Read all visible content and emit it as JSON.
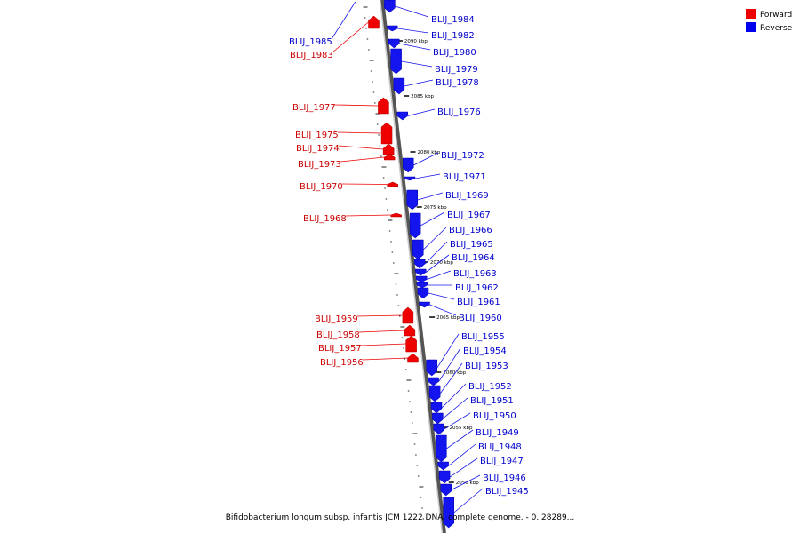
{
  "caption": "Bifidobacterium longum subsp. infantis JCM 1222 DNA, complete genome. - 0..28289...",
  "legend": [
    {
      "label": "Forward",
      "color": "#ee0000"
    },
    {
      "label": "Reverse",
      "color": "#0000ee"
    }
  ],
  "colors": {
    "forward": "#ee0000",
    "reverse": "#1414ee",
    "backbone": "#888888"
  },
  "ticks": [
    "2090 kbp",
    "2085 kbp",
    "2080 kbp",
    "2075 kbp",
    "2070 kbp",
    "2065 kbp",
    "2060 kbp",
    "2055 kbp",
    "2050 kbp"
  ],
  "genes": [
    {
      "name": "BLIJ_1984",
      "strand": "reverse"
    },
    {
      "name": "BLIJ_1985",
      "strand": "reverse"
    },
    {
      "name": "BLIJ_1983",
      "strand": "forward"
    },
    {
      "name": "BLIJ_1982",
      "strand": "reverse"
    },
    {
      "name": "BLIJ_1980",
      "strand": "reverse"
    },
    {
      "name": "BLIJ_1979",
      "strand": "reverse"
    },
    {
      "name": "BLIJ_1978",
      "strand": "reverse"
    },
    {
      "name": "BLIJ_1977",
      "strand": "forward"
    },
    {
      "name": "BLIJ_1976",
      "strand": "reverse"
    },
    {
      "name": "BLIJ_1975",
      "strand": "forward"
    },
    {
      "name": "BLIJ_1974",
      "strand": "forward"
    },
    {
      "name": "BLIJ_1973",
      "strand": "forward"
    },
    {
      "name": "BLIJ_1972",
      "strand": "reverse"
    },
    {
      "name": "BLIJ_1971",
      "strand": "reverse"
    },
    {
      "name": "BLIJ_1970",
      "strand": "forward"
    },
    {
      "name": "BLIJ_1969",
      "strand": "reverse"
    },
    {
      "name": "BLIJ_1968",
      "strand": "forward"
    },
    {
      "name": "BLIJ_1967",
      "strand": "reverse"
    },
    {
      "name": "BLIJ_1966",
      "strand": "reverse"
    },
    {
      "name": "BLIJ_1965",
      "strand": "reverse"
    },
    {
      "name": "BLIJ_1964",
      "strand": "reverse"
    },
    {
      "name": "BLIJ_1963",
      "strand": "reverse"
    },
    {
      "name": "BLIJ_1962",
      "strand": "reverse"
    },
    {
      "name": "BLIJ_1961",
      "strand": "reverse"
    },
    {
      "name": "BLIJ_1960",
      "strand": "reverse"
    },
    {
      "name": "BLIJ_1959",
      "strand": "forward"
    },
    {
      "name": "BLIJ_1958",
      "strand": "forward"
    },
    {
      "name": "BLIJ_1957",
      "strand": "forward"
    },
    {
      "name": "BLIJ_1956",
      "strand": "forward"
    },
    {
      "name": "BLIJ_1955",
      "strand": "reverse"
    },
    {
      "name": "BLIJ_1954",
      "strand": "reverse"
    },
    {
      "name": "BLIJ_1953",
      "strand": "reverse"
    },
    {
      "name": "BLIJ_1952",
      "strand": "reverse"
    },
    {
      "name": "BLIJ_1951",
      "strand": "reverse"
    },
    {
      "name": "BLIJ_1950",
      "strand": "reverse"
    },
    {
      "name": "BLIJ_1949",
      "strand": "reverse"
    },
    {
      "name": "BLIJ_1948",
      "strand": "reverse"
    },
    {
      "name": "BLIJ_1947",
      "strand": "reverse"
    },
    {
      "name": "BLIJ_1946",
      "strand": "reverse"
    },
    {
      "name": "BLIJ_1945",
      "strand": "reverse"
    }
  ]
}
